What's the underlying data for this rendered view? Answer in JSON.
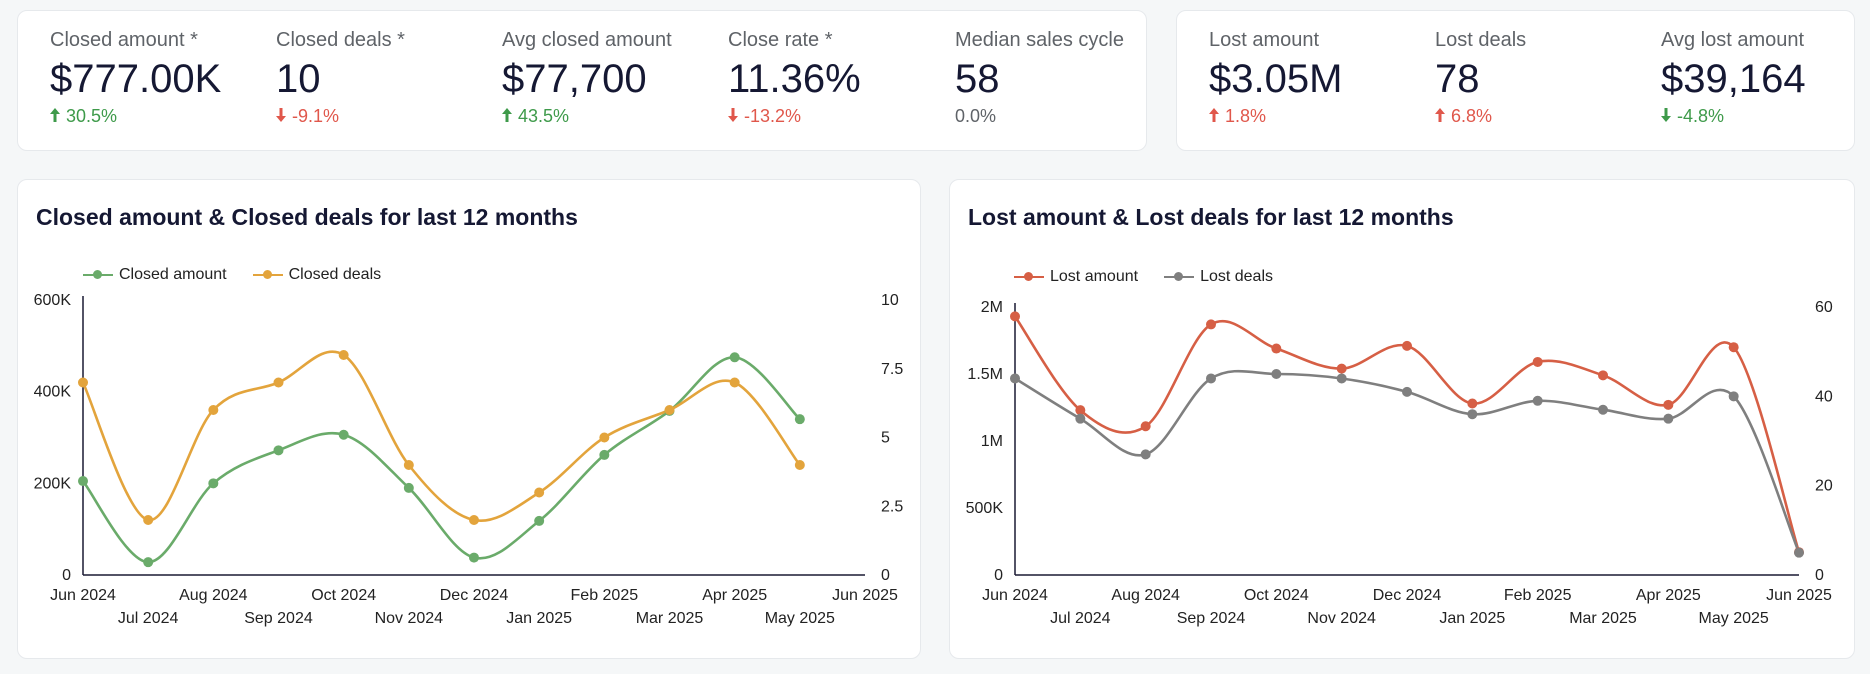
{
  "kpis_left": [
    {
      "label": "Closed amount *",
      "value": "$777.00K",
      "delta": "30.5%",
      "direction": "up",
      "status": "good"
    },
    {
      "label": "Closed deals *",
      "value": "10",
      "delta": "-9.1%",
      "direction": "down",
      "status": "bad"
    },
    {
      "label": "Avg closed amount",
      "value": "$77,700",
      "delta": "43.5%",
      "direction": "up",
      "status": "good"
    },
    {
      "label": "Close rate *",
      "value": "11.36%",
      "delta": "-13.2%",
      "direction": "down",
      "status": "bad"
    },
    {
      "label": "Median sales cycle",
      "value": "58",
      "delta": "0.0%",
      "direction": "none",
      "status": "neutral"
    }
  ],
  "kpis_right": [
    {
      "label": "Lost amount",
      "value": "$3.05M",
      "delta": "1.8%",
      "direction": "up",
      "status": "bad"
    },
    {
      "label": "Lost deals",
      "value": "78",
      "delta": "6.8%",
      "direction": "up",
      "status": "bad"
    },
    {
      "label": "Avg lost amount",
      "value": "$39,164",
      "delta": "-4.8%",
      "direction": "down",
      "status": "good"
    }
  ],
  "colors": {
    "good": "#3e9a4a",
    "bad": "#e0574b",
    "closed_amount": "#6aab6a",
    "closed_deals": "#e3a43c",
    "lost_amount": "#d65f45",
    "lost_deals": "#7f7f7f"
  },
  "chart_data": [
    {
      "type": "line",
      "title": "Closed amount & Closed deals for last 12 months",
      "categories": [
        "Jun 2024",
        "Jul 2024",
        "Aug 2024",
        "Sep 2024",
        "Oct 2024",
        "Nov 2024",
        "Dec 2024",
        "Jan 2025",
        "Feb 2025",
        "Mar 2025",
        "Apr 2025",
        "May 2025",
        "Jun 2025"
      ],
      "series": [
        {
          "name": "Closed amount",
          "axis": "left",
          "color": "#6aab6a",
          "values": [
            205000,
            28000,
            200000,
            272000,
            306000,
            190000,
            38000,
            118000,
            262000,
            358000,
            475000,
            340000,
            null
          ]
        },
        {
          "name": "Closed deals",
          "axis": "right",
          "color": "#e3a43c",
          "values": [
            7,
            2,
            6,
            7,
            8,
            4,
            2,
            3,
            5,
            6,
            7,
            4,
            null
          ]
        }
      ],
      "left_axis": {
        "min": 0,
        "max": 600000,
        "ticks": [
          0,
          200000,
          400000,
          600000
        ],
        "tick_labels": [
          "0",
          "200K",
          "400K",
          "600K"
        ]
      },
      "right_axis": {
        "min": 0,
        "max": 10,
        "ticks": [
          0,
          2.5,
          5,
          7.5,
          10
        ],
        "tick_labels": [
          "0",
          "2.5",
          "5",
          "7.5",
          "10"
        ]
      },
      "legend": "top-left"
    },
    {
      "type": "line",
      "title": "Lost amount & Lost deals for last 12 months",
      "categories": [
        "Jun 2024",
        "Jul 2024",
        "Aug 2024",
        "Sep 2024",
        "Oct 2024",
        "Nov 2024",
        "Dec 2024",
        "Jan 2025",
        "Feb 2025",
        "Mar 2025",
        "Apr 2025",
        "May 2025",
        "Jun 2025"
      ],
      "series": [
        {
          "name": "Lost amount",
          "axis": "left",
          "color": "#d65f45",
          "values": [
            1930000,
            1230000,
            1110000,
            1870000,
            1690000,
            1540000,
            1710000,
            1280000,
            1590000,
            1490000,
            1270000,
            1700000,
            170000
          ]
        },
        {
          "name": "Lost deals",
          "axis": "right",
          "color": "#7f7f7f",
          "values": [
            44,
            35,
            27,
            44,
            45,
            44,
            41,
            36,
            39,
            37,
            35,
            40,
            5
          ]
        }
      ],
      "left_axis": {
        "min": 0,
        "max": 2000000,
        "ticks": [
          0,
          500000,
          1000000,
          1500000,
          2000000
        ],
        "tick_labels": [
          "0",
          "500K",
          "1M",
          "1.5M",
          "2M"
        ]
      },
      "right_axis": {
        "min": 0,
        "max": 60,
        "ticks": [
          0,
          20,
          40,
          60
        ],
        "tick_labels": [
          "0",
          "20",
          "40",
          "60"
        ]
      },
      "legend": "top-left"
    }
  ]
}
